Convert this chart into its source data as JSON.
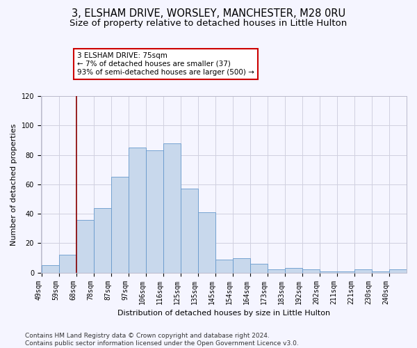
{
  "title1": "3, ELSHAM DRIVE, WORSLEY, MANCHESTER, M28 0RU",
  "title2": "Size of property relative to detached houses in Little Hulton",
  "xlabel": "Distribution of detached houses by size in Little Hulton",
  "ylabel": "Number of detached properties",
  "footnote": "Contains HM Land Registry data © Crown copyright and database right 2024.\nContains public sector information licensed under the Open Government Licence v3.0.",
  "categories": [
    "49sqm",
    "59sqm",
    "68sqm",
    "78sqm",
    "87sqm",
    "97sqm",
    "106sqm",
    "116sqm",
    "125sqm",
    "135sqm",
    "145sqm",
    "154sqm",
    "164sqm",
    "173sqm",
    "183sqm",
    "192sqm",
    "202sqm",
    "211sqm",
    "221sqm",
    "230sqm",
    "240sqm"
  ],
  "values": [
    5,
    12,
    36,
    44,
    65,
    85,
    83,
    88,
    57,
    41,
    9,
    10,
    6,
    2,
    3,
    2,
    1,
    1,
    2,
    1,
    2
  ],
  "n_bars": 21,
  "bar_color": "#c8d8ec",
  "bar_edgecolor": "#6699cc",
  "vline_color": "#8b0000",
  "vline_bin": 2,
  "annotation_text": "3 ELSHAM DRIVE: 75sqm\n← 7% of detached houses are smaller (37)\n93% of semi-detached houses are larger (500) →",
  "annotation_box_facecolor": "white",
  "annotation_box_edgecolor": "#cc0000",
  "ylim": [
    0,
    120
  ],
  "yticks": [
    0,
    20,
    40,
    60,
    80,
    100,
    120
  ],
  "grid_color": "#d0d0e0",
  "background_color": "#f5f5ff",
  "title_fontsize": 10.5,
  "subtitle_fontsize": 9.5,
  "axis_label_fontsize": 8,
  "tick_fontsize": 7,
  "annot_fontsize": 7.5,
  "footnote_fontsize": 6.5
}
